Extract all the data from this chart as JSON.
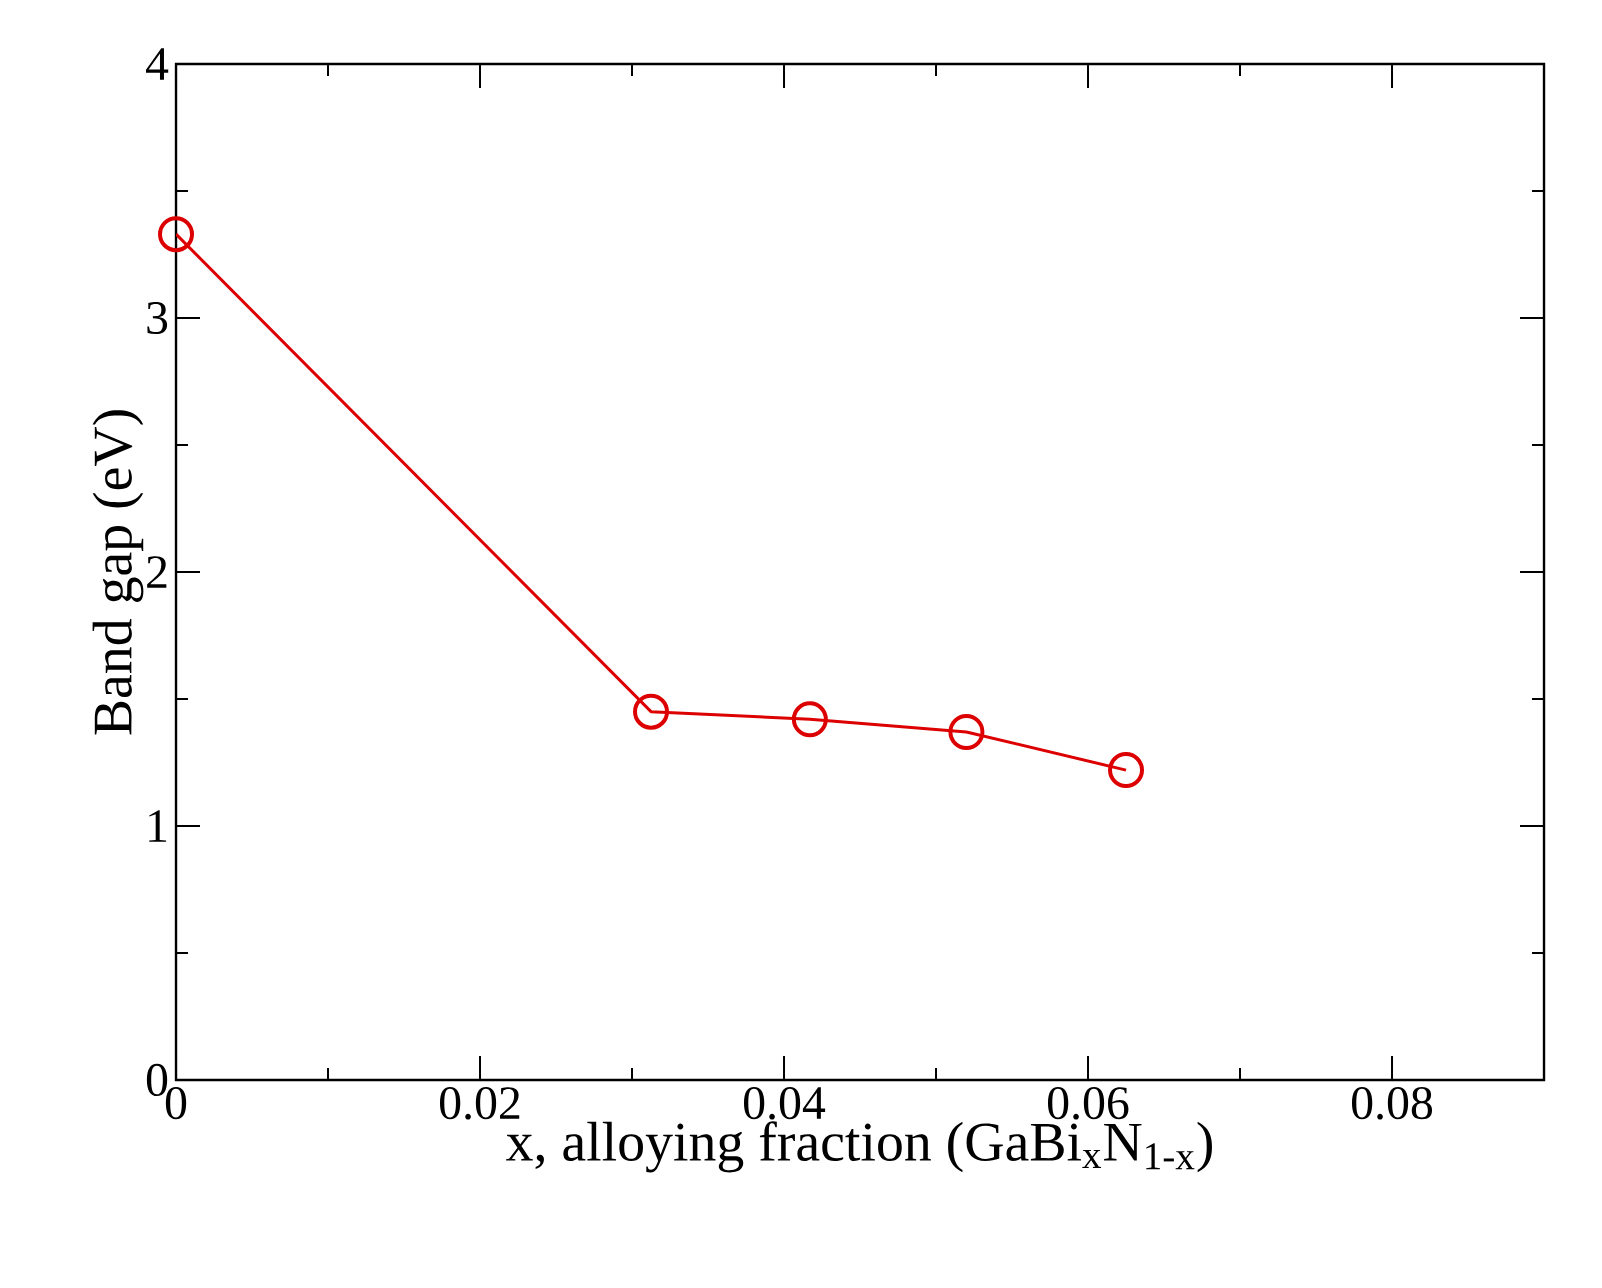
{
  "chart_data": {
    "type": "line",
    "xlabel": "x, alloying fraction (GaBi$_{x}$N$_{1-x}$)",
    "ylabel": "Band gap (eV)",
    "x": [
      0,
      0.03125,
      0.0417,
      0.052,
      0.0625
    ],
    "series": [
      {
        "color": "#dd0000",
        "values": [
          3.33,
          1.45,
          1.42,
          1.37,
          1.22
        ]
      }
    ],
    "xlim": [
      0,
      0.09
    ],
    "ylim": [
      0,
      4
    ],
    "xticks": [
      0,
      0.02,
      0.04,
      0.06,
      0.08
    ],
    "yticks": [
      0,
      1,
      2,
      3,
      4
    ],
    "marker": "circle"
  }
}
